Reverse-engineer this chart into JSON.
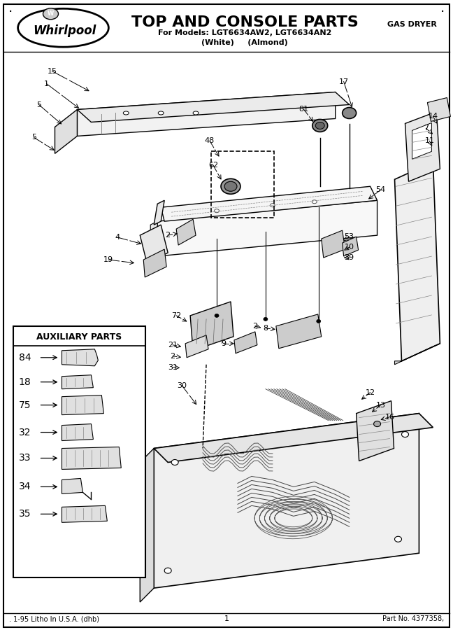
{
  "title": "TOP AND CONSOLE PARTS",
  "subtitle1": "For Models: LGT6634AW2, LGT6634AN2",
  "subtitle2": "(White)     (Almond)",
  "top_right_text": "GAS DRYER",
  "bottom_left": ". 1-95 Litho In U.S.A. (dhb)",
  "bottom_center": "1",
  "bottom_right": "Part No. 4377358,",
  "aux_title": "AUXILIARY PARTS",
  "bg_color": "#ffffff",
  "fig_width": 6.48,
  "fig_height": 9.0,
  "dpi": 100
}
